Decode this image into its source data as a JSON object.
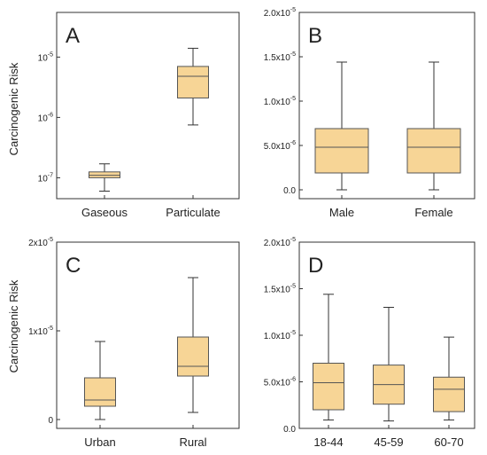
{
  "ylabel_top": "Carcinogenic Risk",
  "ylabel_bottom": "Carcinogenic Risk",
  "colors": {
    "box_fill": "#F7D596",
    "box_stroke": "#555555",
    "frame": "#333333"
  },
  "chart_data": [
    {
      "type": "box",
      "panel_label": "A",
      "scale": "log",
      "ylim": [
        4.5e-08,
        5.5e-05
      ],
      "yticks": [
        {
          "v": 1e-07,
          "base": "10",
          "exp": "-7"
        },
        {
          "v": 1e-06,
          "base": "10",
          "exp": "-6"
        },
        {
          "v": 1e-05,
          "base": "10",
          "exp": "-5"
        }
      ],
      "categories": [
        "Gaseous",
        "Particulate"
      ],
      "boxes": [
        {
          "min": 6e-08,
          "q1": 1e-07,
          "median": 1.1e-07,
          "q3": 1.25e-07,
          "max": 1.7e-07
        },
        {
          "min": 7.5e-07,
          "q1": 2.1e-06,
          "median": 4.8e-06,
          "q3": 7e-06,
          "max": 1.4e-05
        }
      ]
    },
    {
      "type": "box",
      "panel_label": "B",
      "scale": "linear",
      "ylim": [
        -1e-06,
        2e-05
      ],
      "yticks": [
        {
          "v": 0,
          "base": "0.0",
          "exp": ""
        },
        {
          "v": 5e-06,
          "base": "5.0x10",
          "exp": "-6"
        },
        {
          "v": 1e-05,
          "base": "1.0x10",
          "exp": "-5"
        },
        {
          "v": 1.5e-05,
          "base": "1.5x10",
          "exp": "-5"
        },
        {
          "v": 2e-05,
          "base": "2.0x10",
          "exp": "-5"
        }
      ],
      "categories": [
        "Male",
        "Female"
      ],
      "boxes": [
        {
          "min": 0.0,
          "q1": 1.9e-06,
          "median": 4.8e-06,
          "q3": 6.9e-06,
          "max": 1.44e-05
        },
        {
          "min": 0.0,
          "q1": 1.9e-06,
          "median": 4.8e-06,
          "q3": 6.9e-06,
          "max": 1.44e-05
        }
      ]
    },
    {
      "type": "box",
      "panel_label": "C",
      "scale": "linear",
      "ylim": [
        -1e-06,
        2e-05
      ],
      "yticks": [
        {
          "v": 0,
          "base": "0",
          "exp": ""
        },
        {
          "v": 1e-05,
          "base": "1x10",
          "exp": "-5"
        },
        {
          "v": 2e-05,
          "base": "2x10",
          "exp": "-5"
        }
      ],
      "categories": [
        "Urban",
        "Rural"
      ],
      "boxes": [
        {
          "min": 0.0,
          "q1": 1.5e-06,
          "median": 2.2e-06,
          "q3": 4.7e-06,
          "max": 8.8e-06
        },
        {
          "min": 8e-07,
          "q1": 4.9e-06,
          "median": 6e-06,
          "q3": 9.3e-06,
          "max": 1.6e-05
        }
      ]
    },
    {
      "type": "box",
      "panel_label": "D",
      "scale": "linear",
      "ylim": [
        0.0,
        2e-05
      ],
      "yticks": [
        {
          "v": 0,
          "base": "0.0",
          "exp": ""
        },
        {
          "v": 5e-06,
          "base": "5.0x10",
          "exp": "-6"
        },
        {
          "v": 1e-05,
          "base": "1.0x10",
          "exp": "-5"
        },
        {
          "v": 1.5e-05,
          "base": "1.5x10",
          "exp": "-5"
        },
        {
          "v": 2e-05,
          "base": "2.0x10",
          "exp": "-5"
        }
      ],
      "categories": [
        "18-44",
        "45-59",
        "60-70"
      ],
      "boxes": [
        {
          "min": 9e-07,
          "q1": 2e-06,
          "median": 4.9e-06,
          "q3": 7e-06,
          "max": 1.44e-05
        },
        {
          "min": 8e-07,
          "q1": 2.6e-06,
          "median": 4.7e-06,
          "q3": 6.8e-06,
          "max": 1.3e-05
        },
        {
          "min": 9e-07,
          "q1": 1.8e-06,
          "median": 4.2e-06,
          "q3": 5.5e-06,
          "max": 9.8e-06
        }
      ]
    }
  ]
}
